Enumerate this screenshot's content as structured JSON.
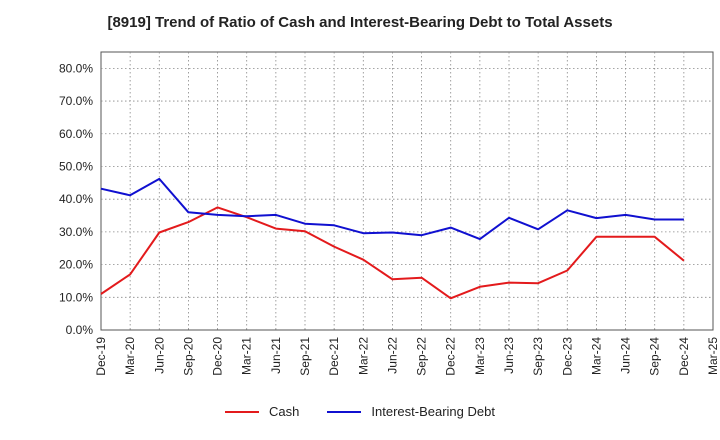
{
  "chart_data": {
    "type": "line",
    "title": "[8919]  Trend of Ratio of Cash and Interest-Bearing Debt to Total Assets",
    "xlabel": "",
    "ylabel": "",
    "ylim": [
      0,
      85
    ],
    "y_ticks": [
      0,
      10,
      20,
      30,
      40,
      50,
      60,
      70,
      80
    ],
    "y_tick_labels": [
      "0.0%",
      "10.0%",
      "20.0%",
      "30.0%",
      "40.0%",
      "50.0%",
      "60.0%",
      "70.0%",
      "80.0%"
    ],
    "categories": [
      "Dec-19",
      "Mar-20",
      "Jun-20",
      "Sep-20",
      "Dec-20",
      "Mar-21",
      "Jun-21",
      "Sep-21",
      "Dec-21",
      "Mar-22",
      "Jun-22",
      "Sep-22",
      "Dec-22",
      "Mar-23",
      "Jun-23",
      "Sep-23",
      "Dec-23",
      "Mar-24",
      "Jun-24",
      "Sep-24",
      "Dec-24",
      "Mar-25"
    ],
    "grid": true,
    "legend_position": "bottom",
    "series": [
      {
        "name": "Cash",
        "color": "#e31a1c",
        "values": [
          11.0,
          17.0,
          29.8,
          33.0,
          37.5,
          34.5,
          31.0,
          30.2,
          25.5,
          21.5,
          15.5,
          16.0,
          9.7,
          13.2,
          14.5,
          14.3,
          18.2,
          28.5,
          28.5,
          28.5,
          21.2,
          null
        ]
      },
      {
        "name": "Interest-Bearing Debt",
        "color": "#1010d0",
        "values": [
          43.2,
          41.2,
          46.2,
          36.0,
          35.2,
          34.8,
          35.2,
          32.5,
          32.0,
          29.6,
          29.8,
          29.0,
          31.3,
          27.8,
          34.3,
          30.8,
          36.6,
          34.2,
          35.2,
          33.8,
          33.8,
          null
        ]
      }
    ]
  }
}
